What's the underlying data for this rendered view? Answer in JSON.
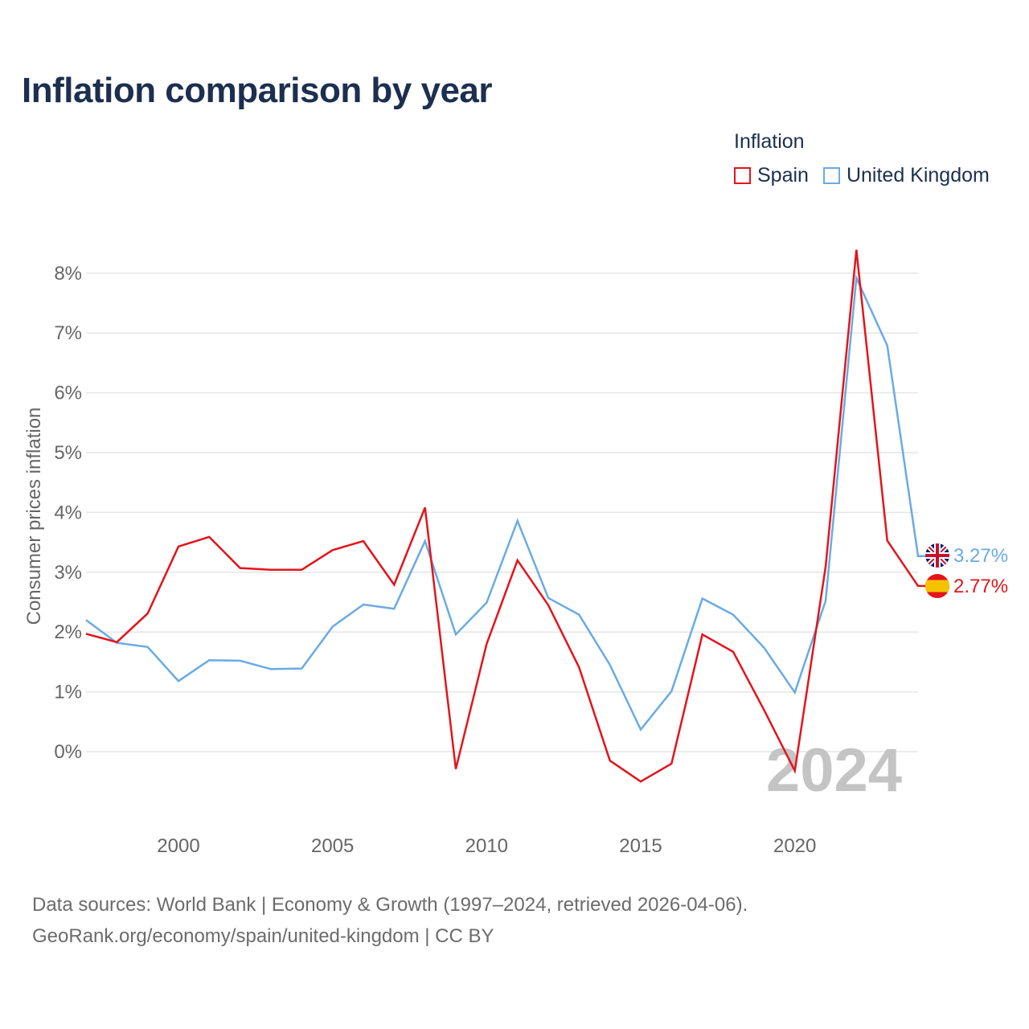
{
  "title": "Inflation comparison by year",
  "legend": {
    "title": "Inflation",
    "items": [
      {
        "label": "Spain",
        "color": "#e3141b"
      },
      {
        "label": "United Kingdom",
        "color": "#6aabe3"
      }
    ]
  },
  "footer": {
    "line1": "Data sources: World Bank | Economy & Growth (1997–2024, retrieved 2026-04-06).",
    "line2": "GeoRank.org/economy/spain/united-kingdom | CC BY"
  },
  "chart_data": {
    "type": "line",
    "title": "Inflation comparison by year",
    "xlabel": "",
    "ylabel": "Consumer prices inflation",
    "xlim": [
      1997,
      2024
    ],
    "ylim": [
      -1.0,
      8.5
    ],
    "x_ticks": [
      2000,
      2005,
      2010,
      2015,
      2020
    ],
    "y_ticks": [
      0,
      1,
      2,
      3,
      4,
      5,
      6,
      7,
      8
    ],
    "y_tick_labels": [
      "0%",
      "1%",
      "2%",
      "3%",
      "4%",
      "5%",
      "6%",
      "7%",
      "8%"
    ],
    "grid": true,
    "year_watermark": "2024",
    "x": [
      1997,
      1998,
      1999,
      2000,
      2001,
      2002,
      2003,
      2004,
      2005,
      2006,
      2007,
      2008,
      2009,
      2010,
      2011,
      2012,
      2013,
      2014,
      2015,
      2016,
      2017,
      2018,
      2019,
      2020,
      2021,
      2022,
      2023,
      2024
    ],
    "series": [
      {
        "name": "Spain",
        "color": "#e3141b",
        "flag": "spain-flag",
        "end_label": "2.77%",
        "values": [
          1.97,
          1.83,
          2.31,
          3.43,
          3.59,
          3.07,
          3.04,
          3.04,
          3.37,
          3.52,
          2.79,
          4.08,
          -0.29,
          1.8,
          3.2,
          2.45,
          1.41,
          -0.15,
          -0.5,
          -0.2,
          1.96,
          1.67,
          0.7,
          -0.32,
          3.09,
          8.39,
          3.53,
          2.77
        ]
      },
      {
        "name": "United Kingdom",
        "color": "#6aabe3",
        "flag": "uk-flag",
        "end_label": "3.27%",
        "values": [
          2.2,
          1.82,
          1.75,
          1.18,
          1.53,
          1.52,
          1.38,
          1.39,
          2.09,
          2.46,
          2.39,
          3.52,
          1.96,
          2.49,
          3.86,
          2.57,
          2.29,
          1.45,
          0.37,
          1.01,
          2.56,
          2.29,
          1.74,
          0.99,
          2.52,
          7.92,
          6.79,
          3.27
        ]
      }
    ]
  }
}
